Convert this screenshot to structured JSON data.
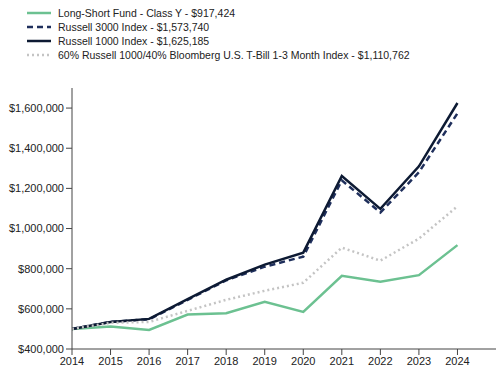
{
  "chart_data": {
    "type": "line",
    "x": [
      2014,
      2015,
      2016,
      2017,
      2018,
      2019,
      2020,
      2021,
      2022,
      2023,
      2024
    ],
    "series": [
      {
        "name": "Long-Short Fund - Class Y - $917,424",
        "color": "#6cc191",
        "line_style": "solid",
        "values": [
          500000,
          512000,
          495000,
          572000,
          578000,
          635000,
          585000,
          765000,
          735000,
          768000,
          917424
        ]
      },
      {
        "name": "Russell 3000 Index - $1,573,740",
        "color": "#1f2f5c",
        "line_style": "dashed",
        "values": [
          500000,
          535000,
          548000,
          645000,
          742000,
          810000,
          860000,
          1240000,
          1080000,
          1280000,
          1573740
        ]
      },
      {
        "name": "Russell 1000 Index - $1,625,185",
        "color": "#0d1a33",
        "line_style": "solid",
        "values": [
          500000,
          535000,
          550000,
          648000,
          745000,
          820000,
          880000,
          1262000,
          1098000,
          1310000,
          1625185
        ]
      },
      {
        "name": "60% Russell 1000/40% Bloomberg U.S. T-Bill 1-3 Month Index - $1,110,762",
        "color": "#c4c4c4",
        "line_style": "dotted",
        "values": [
          500000,
          530000,
          535000,
          590000,
          645000,
          690000,
          730000,
          905000,
          840000,
          950000,
          1110762
        ]
      }
    ],
    "xlim": [
      2014,
      2025
    ],
    "xticks": [
      2014,
      2015,
      2016,
      2017,
      2018,
      2019,
      2020,
      2021,
      2022,
      2023,
      2024
    ],
    "ylim": [
      400000,
      1700000
    ],
    "yticks": [
      {
        "value": 400000,
        "label": "$400,000"
      },
      {
        "value": 600000,
        "label": "$600,000"
      },
      {
        "value": 800000,
        "label": "$800,000"
      },
      {
        "value": 1000000,
        "label": "$1,000,000"
      },
      {
        "value": 1200000,
        "label": "$1,200,000"
      },
      {
        "value": 1400000,
        "label": "$1,400,000"
      },
      {
        "value": 1600000,
        "label": "$1,600,000"
      }
    ],
    "grid": false,
    "legend": "top-left"
  }
}
